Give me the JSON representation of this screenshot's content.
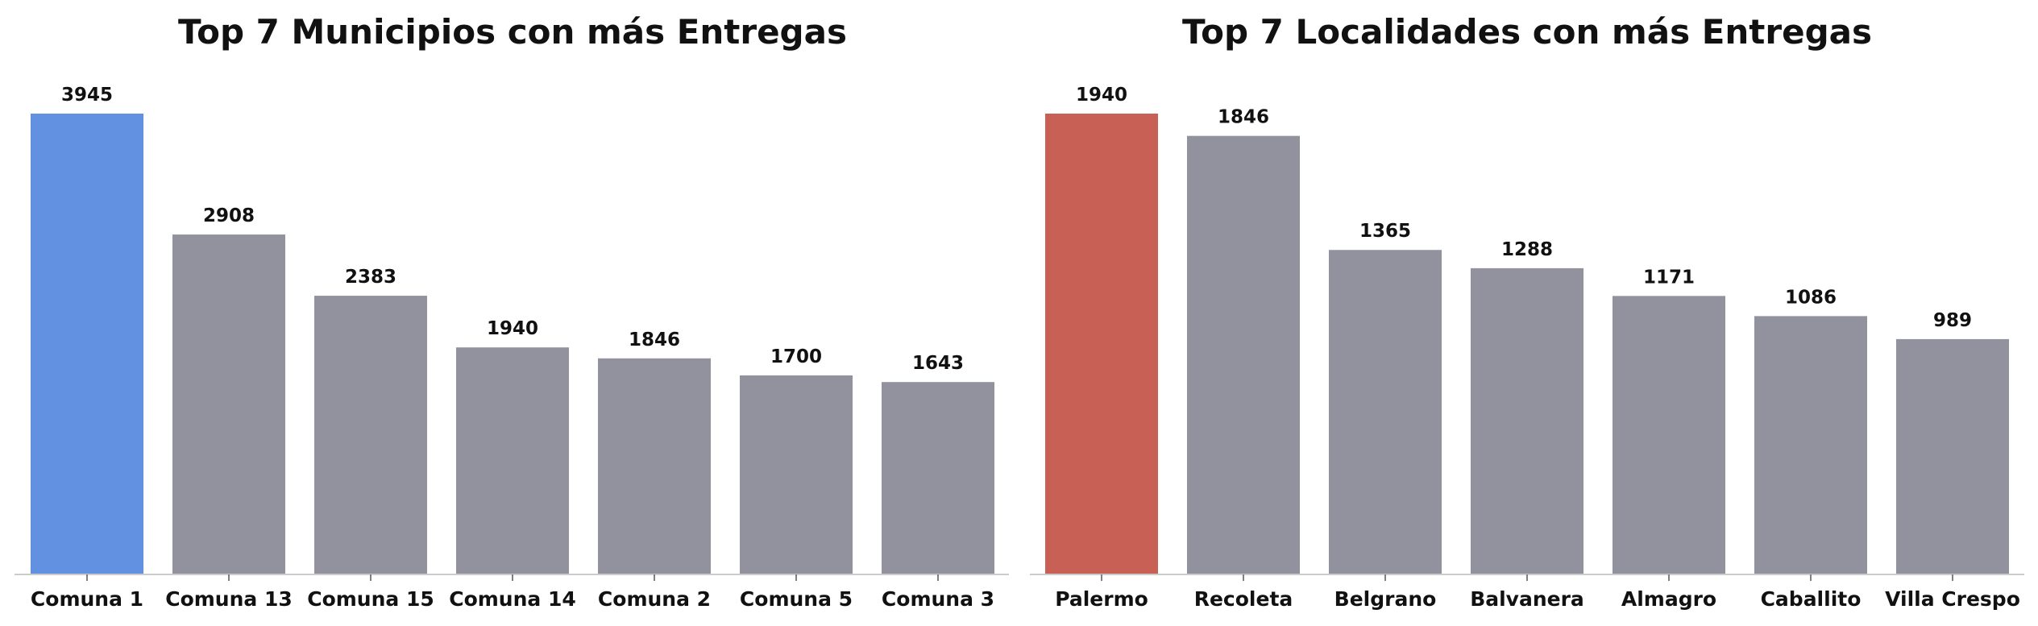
{
  "chart_data": [
    {
      "type": "bar",
      "title": "Top 7 Municipios con más Entregas",
      "xlabel": "",
      "ylabel": "",
      "categories": [
        "Comuna 1",
        "Comuna 13",
        "Comuna 15",
        "Comuna 14",
        "Comuna 2",
        "Comuna 5",
        "Comuna 3"
      ],
      "values": [
        3945,
        2908,
        2383,
        1940,
        1846,
        1700,
        1643
      ],
      "ylim": [
        0,
        3945
      ],
      "grid": false,
      "colors": [
        "#6391e1",
        "#92929e",
        "#92929e",
        "#92929e",
        "#92929e",
        "#92929e",
        "#92929e"
      ]
    },
    {
      "type": "bar",
      "title": "Top 7 Localidades con más Entregas",
      "xlabel": "",
      "ylabel": "",
      "categories": [
        "Palermo",
        "Recoleta",
        "Belgrano",
        "Balvanera",
        "Almagro",
        "Caballito",
        "Villa Crespo"
      ],
      "values": [
        1940,
        1846,
        1365,
        1288,
        1171,
        1086,
        989
      ],
      "ylim": [
        0,
        1940
      ],
      "grid": false,
      "colors": [
        "#c86056",
        "#92929e",
        "#92929e",
        "#92929e",
        "#92929e",
        "#92929e",
        "#92929e"
      ]
    }
  ]
}
